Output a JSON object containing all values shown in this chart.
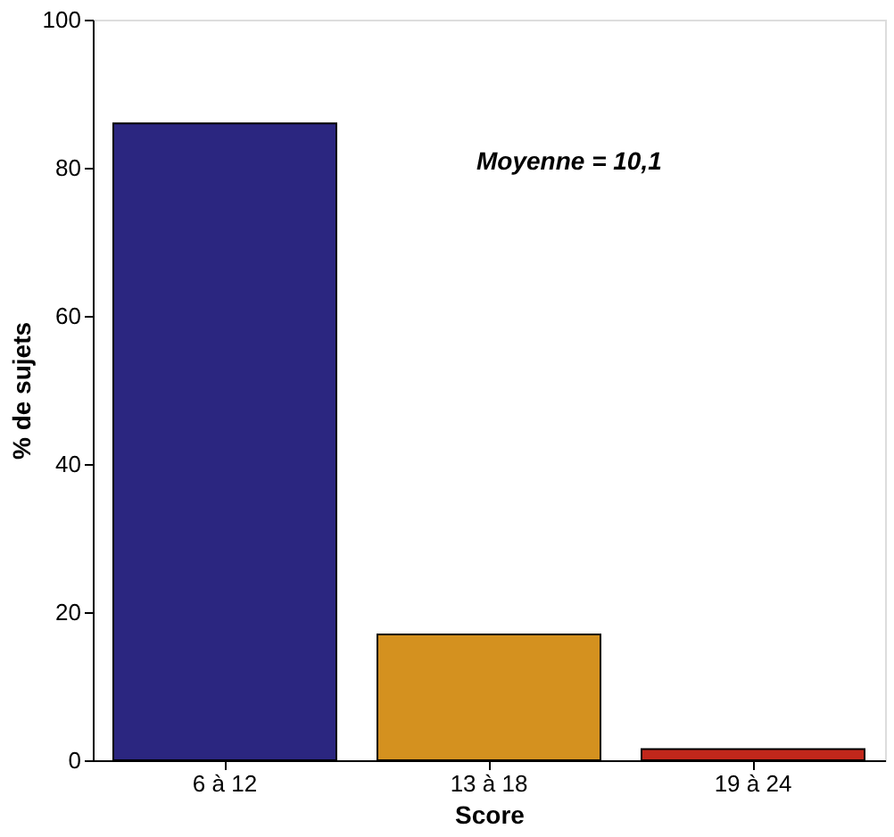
{
  "chart_data": {
    "type": "bar",
    "xlabel": "Score",
    "ylabel": "% de sujets",
    "categories": [
      "6 à 12",
      "13 à 18",
      "19 à 24"
    ],
    "values": [
      86,
      17,
      1.5
    ],
    "colors": [
      "#2b2680",
      "#d4911f",
      "#c1271b"
    ],
    "ylim": [
      0,
      100
    ],
    "yticks": [
      0,
      20,
      40,
      60,
      80,
      100
    ],
    "grid": false,
    "annotations": [
      "Moyenne = 10,1"
    ]
  }
}
